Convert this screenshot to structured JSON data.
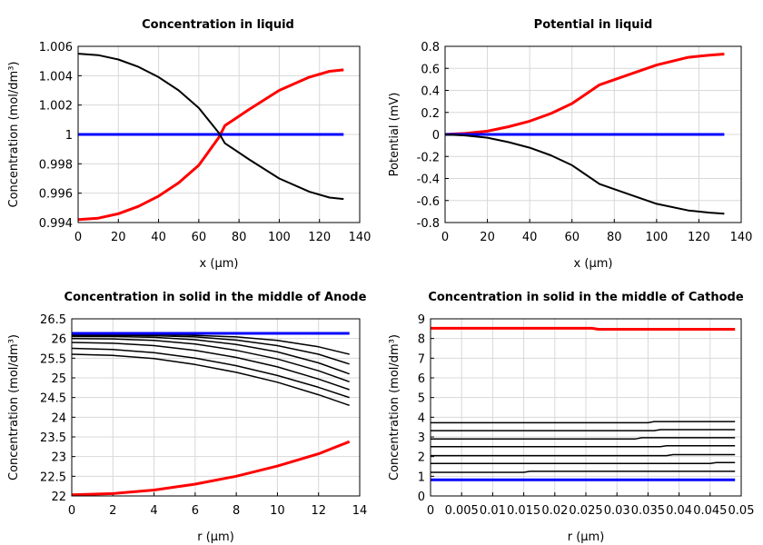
{
  "chart_data": [
    {
      "type": "line",
      "title": "Concentration in liquid",
      "xlabel": "x (µm)",
      "ylabel": "Concentration (mol/dm³)",
      "xlim": [
        0,
        140
      ],
      "ylim": [
        0.994,
        1.006
      ],
      "xticks": [
        "0",
        "20",
        "40",
        "60",
        "80",
        "100",
        "120",
        "140"
      ],
      "yticks": [
        "0.994",
        "0.996",
        "0.998",
        "1",
        "1.002",
        "1.004",
        "1.006"
      ],
      "grid": true,
      "series": [
        {
          "color": "#ff0000",
          "x": [
            0,
            10,
            20,
            30,
            40,
            50,
            60,
            70,
            73,
            85,
            100,
            115,
            125,
            132
          ],
          "y": [
            0.9942,
            0.9943,
            0.9946,
            0.9951,
            0.9958,
            0.9967,
            0.9979,
            0.9998,
            1.0006,
            1.0017,
            1.003,
            1.0039,
            1.0043,
            1.0044
          ]
        },
        {
          "color": "#0000ff",
          "x": [
            0,
            132
          ],
          "y": [
            1.0,
            1.0
          ]
        },
        {
          "color": "#000000",
          "x": [
            0,
            10,
            20,
            30,
            40,
            50,
            60,
            70,
            73,
            85,
            100,
            115,
            125,
            132
          ],
          "y": [
            1.0055,
            1.0054,
            1.0051,
            1.0046,
            1.0039,
            1.003,
            1.0018,
            1.0001,
            0.9994,
            0.9983,
            0.997,
            0.9961,
            0.9957,
            0.9956
          ]
        }
      ]
    },
    {
      "type": "line",
      "title": "Potential in liquid",
      "xlabel": "x (µm)",
      "ylabel": "Potential (mV)",
      "xlim": [
        0,
        140
      ],
      "ylim": [
        -0.8,
        0.8
      ],
      "xticks": [
        "0",
        "20",
        "40",
        "60",
        "80",
        "100",
        "120",
        "140"
      ],
      "yticks": [
        "-0.8",
        "-0.6",
        "-0.4",
        "-0.2",
        "0",
        "0.2",
        "0.4",
        "0.6",
        "0.8"
      ],
      "grid": true,
      "series": [
        {
          "color": "#ff0000",
          "x": [
            0,
            10,
            20,
            30,
            40,
            50,
            60,
            73,
            85,
            100,
            115,
            125,
            132
          ],
          "y": [
            0,
            0.01,
            0.03,
            0.07,
            0.12,
            0.19,
            0.28,
            0.45,
            0.53,
            0.63,
            0.7,
            0.72,
            0.73
          ]
        },
        {
          "color": "#0000ff",
          "x": [
            0,
            132
          ],
          "y": [
            0,
            0
          ]
        },
        {
          "color": "#000000",
          "x": [
            0,
            10,
            20,
            30,
            40,
            50,
            60,
            73,
            85,
            100,
            115,
            125,
            132
          ],
          "y": [
            0,
            -0.01,
            -0.03,
            -0.07,
            -0.12,
            -0.19,
            -0.28,
            -0.45,
            -0.53,
            -0.63,
            -0.69,
            -0.71,
            -0.72
          ]
        }
      ]
    },
    {
      "type": "line",
      "title": "Concentration in solid in the middle of Anode",
      "xlabel": "r (µm)",
      "ylabel": "Concentration (mol/dm³)",
      "xlim": [
        0,
        14
      ],
      "ylim": [
        22,
        26.5
      ],
      "xticks": [
        "0",
        "2",
        "4",
        "6",
        "8",
        "10",
        "12",
        "14"
      ],
      "yticks": [
        "22",
        "22.5",
        "23",
        "23.5",
        "24",
        "24.5",
        "25",
        "25.5",
        "26",
        "26.5"
      ],
      "grid": true,
      "series": [
        {
          "color": "#000000",
          "x": [
            0,
            2,
            4,
            6,
            8,
            10,
            12,
            13.5
          ],
          "y": [
            26.1,
            26.1,
            26.1,
            26.08,
            26.04,
            25.95,
            25.79,
            25.6
          ]
        },
        {
          "color": "#000000",
          "x": [
            0,
            2,
            4,
            6,
            8,
            10,
            12,
            13.5
          ],
          "y": [
            26.08,
            26.08,
            26.07,
            26.04,
            25.96,
            25.82,
            25.6,
            25.35
          ]
        },
        {
          "color": "#000000",
          "x": [
            0,
            2,
            4,
            6,
            8,
            10,
            12,
            13.5
          ],
          "y": [
            26.05,
            26.05,
            26.03,
            25.97,
            25.85,
            25.66,
            25.38,
            25.1
          ]
        },
        {
          "color": "#000000",
          "x": [
            0,
            2,
            4,
            6,
            8,
            10,
            12,
            13.5
          ],
          "y": [
            26.0,
            25.99,
            25.95,
            25.86,
            25.7,
            25.48,
            25.18,
            24.9
          ]
        },
        {
          "color": "#000000",
          "x": [
            0,
            2,
            4,
            6,
            8,
            10,
            12,
            13.5
          ],
          "y": [
            25.9,
            25.88,
            25.82,
            25.7,
            25.52,
            25.28,
            24.97,
            24.7
          ]
        },
        {
          "color": "#000000",
          "x": [
            0,
            2,
            4,
            6,
            8,
            10,
            12,
            13.5
          ],
          "y": [
            25.75,
            25.72,
            25.64,
            25.5,
            25.31,
            25.06,
            24.76,
            24.5
          ]
        },
        {
          "color": "#000000",
          "x": [
            0,
            2,
            4,
            6,
            8,
            10,
            12,
            13.5
          ],
          "y": [
            25.6,
            25.57,
            25.49,
            25.34,
            25.14,
            24.89,
            24.57,
            24.3
          ]
        },
        {
          "color": "#0000ff",
          "x": [
            0,
            13.5
          ],
          "y": [
            26.13,
            26.13
          ]
        },
        {
          "color": "#ff0000",
          "x": [
            0,
            2,
            4,
            6,
            8,
            10,
            12,
            13.5
          ],
          "y": [
            22.03,
            22.06,
            22.15,
            22.3,
            22.5,
            22.76,
            23.07,
            23.38
          ]
        }
      ]
    },
    {
      "type": "line",
      "title": "Concentration in solid in the middle of Cathode",
      "xlabel": "r (µm)",
      "ylabel": "Concentration (mol/dm³)",
      "xlim": [
        0,
        0.05
      ],
      "ylim": [
        0,
        9
      ],
      "xticks": [
        "0",
        "0.005",
        "0.01",
        "0.015",
        "0.02",
        "0.025",
        "0.03",
        "0.035",
        "0.04",
        "0.045",
        "0.05"
      ],
      "yticks": [
        "0",
        "1",
        "2",
        "3",
        "4",
        "5",
        "6",
        "7",
        "8",
        "9"
      ],
      "grid": true,
      "series": [
        {
          "color": "#ff0000",
          "x": [
            0,
            0.026,
            0.027,
            0.049
          ],
          "y": [
            8.52,
            8.52,
            8.47,
            8.47
          ]
        },
        {
          "color": "#000000",
          "x": [
            0,
            0.035,
            0.036,
            0.049
          ],
          "y": [
            3.72,
            3.72,
            3.78,
            3.78
          ]
        },
        {
          "color": "#000000",
          "x": [
            0,
            0.036,
            0.037,
            0.049
          ],
          "y": [
            3.32,
            3.32,
            3.37,
            3.37
          ]
        },
        {
          "color": "#000000",
          "x": [
            0,
            0.033,
            0.034,
            0.049
          ],
          "y": [
            2.9,
            2.9,
            2.96,
            2.96
          ]
        },
        {
          "color": "#000000",
          "x": [
            0,
            0.037,
            0.038,
            0.049
          ],
          "y": [
            2.5,
            2.5,
            2.55,
            2.55
          ]
        },
        {
          "color": "#000000",
          "x": [
            0,
            0.038,
            0.039,
            0.049
          ],
          "y": [
            2.05,
            2.05,
            2.1,
            2.1
          ]
        },
        {
          "color": "#000000",
          "x": [
            0,
            0.045,
            0.046,
            0.049
          ],
          "y": [
            1.65,
            1.65,
            1.7,
            1.7
          ]
        },
        {
          "color": "#000000",
          "x": [
            0,
            0.015,
            0.016,
            0.049
          ],
          "y": [
            1.2,
            1.2,
            1.25,
            1.25
          ]
        },
        {
          "color": "#0000ff",
          "x": [
            0,
            0.049
          ],
          "y": [
            0.82,
            0.82
          ]
        }
      ]
    }
  ]
}
